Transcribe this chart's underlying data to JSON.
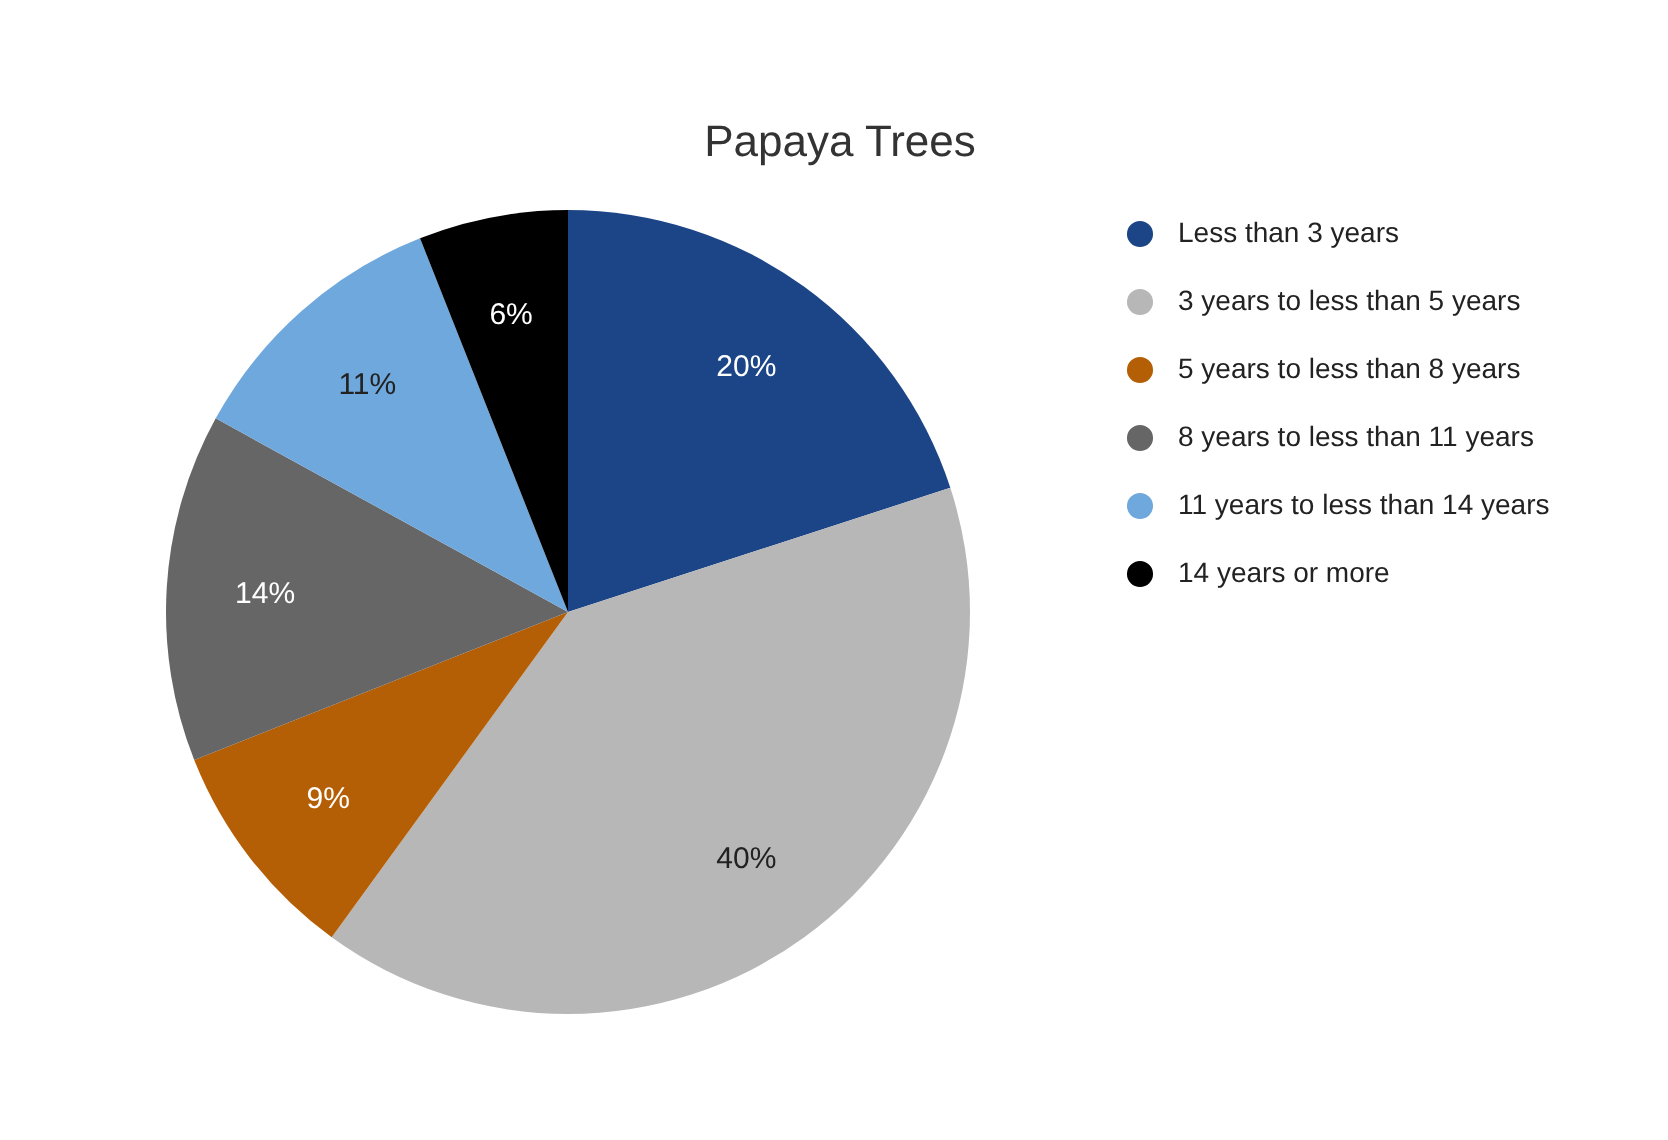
{
  "chart_data": {
    "type": "pie",
    "title": "Papaya Trees",
    "categories": [
      "Less than 3 years",
      "3 years to less than 5 years",
      "5 years to less than 8 years",
      "8 years to less than 11 years",
      "11 years to less than 14 years",
      "14 years or more"
    ],
    "values": [
      20,
      40,
      9,
      14,
      11,
      6
    ],
    "colors": [
      "#1c4587",
      "#b7b7b7",
      "#b45f06",
      "#666666",
      "#6fa8dc",
      "#000000"
    ],
    "value_labels": [
      "20%",
      "40%",
      "9%",
      "14%",
      "11%",
      "6%"
    ],
    "legend": "right"
  }
}
